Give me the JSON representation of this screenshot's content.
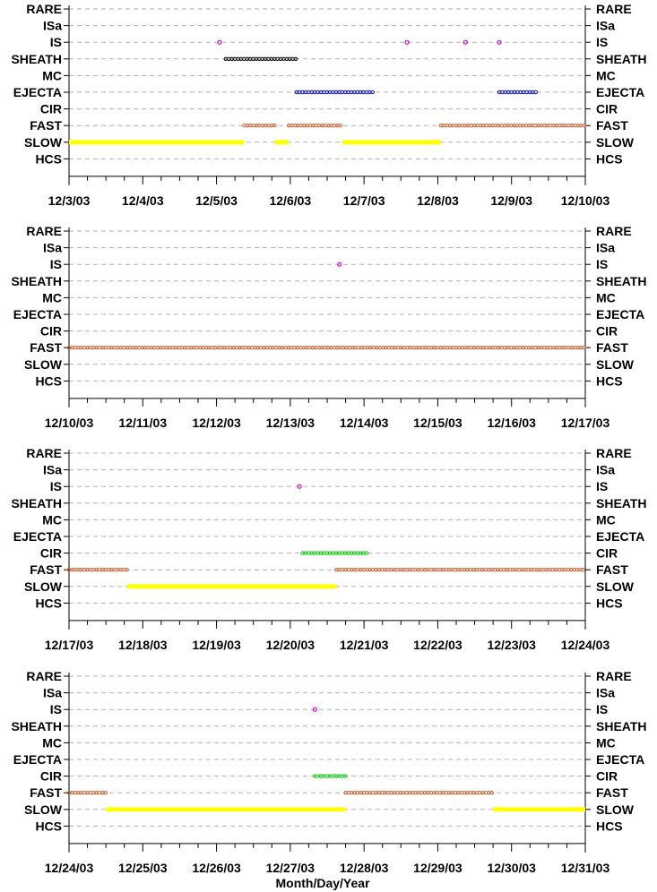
{
  "xlabel": "Month/Day/Year",
  "categories": [
    "RARE",
    "ISa",
    "IS",
    "SHEATH",
    "MC",
    "EJECTA",
    "CIR",
    "FAST",
    "SLOW",
    "HCS"
  ],
  "colors": {
    "IS": "#cc00cc",
    "SHEATH": "#000000",
    "EJECTA": "#0000cc",
    "CIR": "#00cc00",
    "FAST": "#cc6633",
    "SLOW": "#ffff00",
    "grid": "#b0b0b0"
  },
  "chart_data": [
    {
      "type": "scatter",
      "x_tick_labels": [
        "12/3/03",
        "12/4/03",
        "12/5/03",
        "12/6/03",
        "12/7/03",
        "12/8/03",
        "12/9/03",
        "12/10/03"
      ],
      "xlim": [
        "2003-12-03",
        "2003-12-10"
      ],
      "series": [
        {
          "category": "SLOW",
          "segments": [
            [
              "2003-12-03",
              "2003-12-05 09:00"
            ],
            [
              "2003-12-05 19:00",
              "2003-12-05 23:30"
            ],
            [
              "2003-12-06 17:00",
              "2003-12-08 01:00"
            ]
          ]
        },
        {
          "category": "FAST",
          "segments": [
            [
              "2003-12-05 09:00",
              "2003-12-05 19:00"
            ],
            [
              "2003-12-05 23:30",
              "2003-12-06 17:00"
            ],
            [
              "2003-12-08 01:00",
              "2003-12-10 00:00"
            ]
          ]
        },
        {
          "category": "SHEATH",
          "segments": [
            [
              "2003-12-05 03:00",
              "2003-12-06 02:00"
            ]
          ]
        },
        {
          "category": "EJECTA",
          "segments": [
            [
              "2003-12-06 02:00",
              "2003-12-07 03:00"
            ],
            [
              "2003-12-08 20:00",
              "2003-12-09 08:00"
            ]
          ]
        },
        {
          "category": "IS",
          "points": [
            "2003-12-05 01:00",
            "2003-12-07 14:00",
            "2003-12-08 09:00",
            "2003-12-08 20:00"
          ]
        }
      ]
    },
    {
      "type": "scatter",
      "x_tick_labels": [
        "12/10/03",
        "12/11/03",
        "12/12/03",
        "12/13/03",
        "12/14/03",
        "12/15/03",
        "12/16/03",
        "12/17/03"
      ],
      "xlim": [
        "2003-12-10",
        "2003-12-17"
      ],
      "series": [
        {
          "category": "FAST",
          "segments": [
            [
              "2003-12-10",
              "2003-12-17"
            ]
          ]
        },
        {
          "category": "IS",
          "points": [
            "2003-12-13 16:00"
          ]
        }
      ]
    },
    {
      "type": "scatter",
      "x_tick_labels": [
        "12/17/03",
        "12/18/03",
        "12/19/03",
        "12/20/03",
        "12/21/03",
        "12/22/03",
        "12/23/03",
        "12/24/03"
      ],
      "xlim": [
        "2003-12-17",
        "2003-12-24"
      ],
      "series": [
        {
          "category": "FAST",
          "segments": [
            [
              "2003-12-17",
              "2003-12-17 19:00"
            ],
            [
              "2003-12-20 15:00",
              "2003-12-24 00:00"
            ]
          ]
        },
        {
          "category": "SLOW",
          "segments": [
            [
              "2003-12-17 19:00",
              "2003-12-20 15:00"
            ]
          ]
        },
        {
          "category": "CIR",
          "segments": [
            [
              "2003-12-20 04:00",
              "2003-12-21 01:00"
            ]
          ]
        },
        {
          "category": "IS",
          "points": [
            "2003-12-20 03:00"
          ]
        }
      ]
    },
    {
      "type": "scatter",
      "x_tick_labels": [
        "12/24/03",
        "12/25/03",
        "12/26/03",
        "12/27/03",
        "12/28/03",
        "12/29/03",
        "12/30/03",
        "12/31/03"
      ],
      "xlim": [
        "2003-12-24",
        "2003-12-31"
      ],
      "series": [
        {
          "category": "FAST",
          "segments": [
            [
              "2003-12-24",
              "2003-12-24 12:00"
            ],
            [
              "2003-12-27 18:00",
              "2003-12-29 18:00"
            ]
          ]
        },
        {
          "category": "SLOW",
          "segments": [
            [
              "2003-12-24 12:00",
              "2003-12-27 18:00"
            ],
            [
              "2003-12-29 18:00",
              "2003-12-31 00:00"
            ]
          ]
        },
        {
          "category": "CIR",
          "segments": [
            [
              "2003-12-27 08:00",
              "2003-12-27 18:00"
            ]
          ]
        },
        {
          "category": "IS",
          "points": [
            "2003-12-27 08:00"
          ]
        }
      ]
    }
  ]
}
